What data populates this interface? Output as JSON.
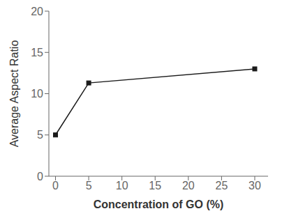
{
  "chart_data": {
    "type": "line",
    "x": [
      0,
      5,
      30
    ],
    "values": [
      5.0,
      11.3,
      13.0
    ],
    "xlabel": "Concentration of GO (%)",
    "ylabel": "Average Aspect Ratio",
    "xlim": [
      -1,
      32
    ],
    "ylim": [
      0,
      20
    ],
    "xticks": [
      0,
      5,
      10,
      15,
      20,
      25,
      30
    ],
    "yticks": [
      0,
      5,
      10,
      15,
      20
    ],
    "color": "#1a1a1a",
    "marker": "square",
    "grid": false
  }
}
